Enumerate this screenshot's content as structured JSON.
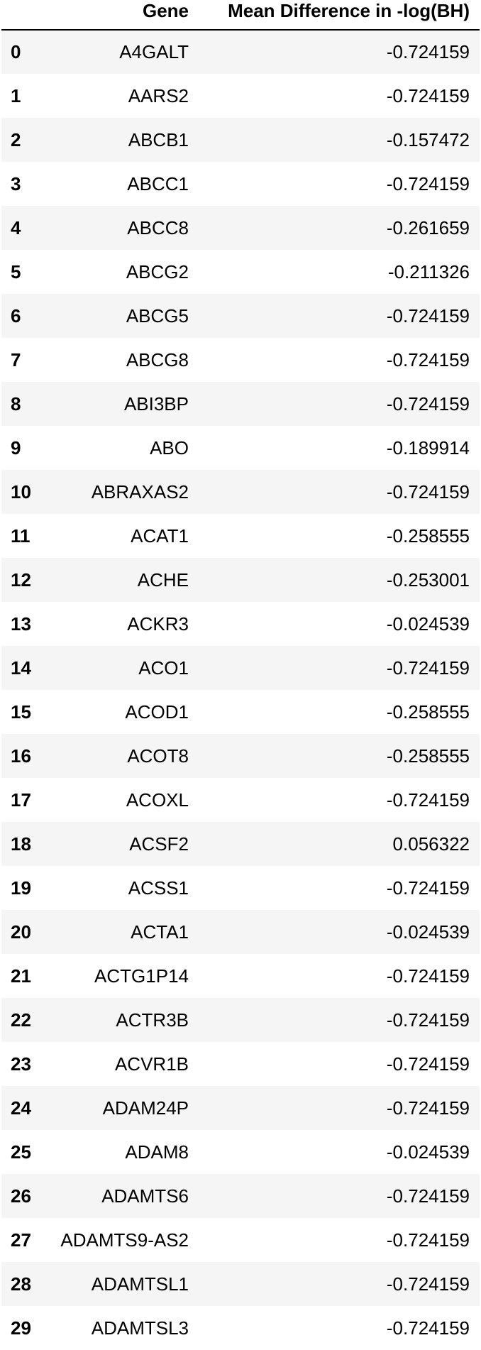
{
  "table": {
    "columns": {
      "index": "",
      "gene": "Gene",
      "value": "Mean Difference in -log(BH)"
    },
    "rows": [
      {
        "index": "0",
        "gene": "A4GALT",
        "value": "-0.724159"
      },
      {
        "index": "1",
        "gene": "AARS2",
        "value": "-0.724159"
      },
      {
        "index": "2",
        "gene": "ABCB1",
        "value": "-0.157472"
      },
      {
        "index": "3",
        "gene": "ABCC1",
        "value": "-0.724159"
      },
      {
        "index": "4",
        "gene": "ABCC8",
        "value": "-0.261659"
      },
      {
        "index": "5",
        "gene": "ABCG2",
        "value": "-0.211326"
      },
      {
        "index": "6",
        "gene": "ABCG5",
        "value": "-0.724159"
      },
      {
        "index": "7",
        "gene": "ABCG8",
        "value": "-0.724159"
      },
      {
        "index": "8",
        "gene": "ABI3BP",
        "value": "-0.724159"
      },
      {
        "index": "9",
        "gene": "ABO",
        "value": "-0.189914"
      },
      {
        "index": "10",
        "gene": "ABRAXAS2",
        "value": "-0.724159"
      },
      {
        "index": "11",
        "gene": "ACAT1",
        "value": "-0.258555"
      },
      {
        "index": "12",
        "gene": "ACHE",
        "value": "-0.253001"
      },
      {
        "index": "13",
        "gene": "ACKR3",
        "value": "-0.024539"
      },
      {
        "index": "14",
        "gene": "ACO1",
        "value": "-0.724159"
      },
      {
        "index": "15",
        "gene": "ACOD1",
        "value": "-0.258555"
      },
      {
        "index": "16",
        "gene": "ACOT8",
        "value": "-0.258555"
      },
      {
        "index": "17",
        "gene": "ACOXL",
        "value": "-0.724159"
      },
      {
        "index": "18",
        "gene": "ACSF2",
        "value": "0.056322"
      },
      {
        "index": "19",
        "gene": "ACSS1",
        "value": "-0.724159"
      },
      {
        "index": "20",
        "gene": "ACTA1",
        "value": "-0.024539"
      },
      {
        "index": "21",
        "gene": "ACTG1P14",
        "value": "-0.724159"
      },
      {
        "index": "22",
        "gene": "ACTR3B",
        "value": "-0.724159"
      },
      {
        "index": "23",
        "gene": "ACVR1B",
        "value": "-0.724159"
      },
      {
        "index": "24",
        "gene": "ADAM24P",
        "value": "-0.724159"
      },
      {
        "index": "25",
        "gene": "ADAM8",
        "value": "-0.024539"
      },
      {
        "index": "26",
        "gene": "ADAMTS6",
        "value": "-0.724159"
      },
      {
        "index": "27",
        "gene": "ADAMTS9-AS2",
        "value": "-0.724159"
      },
      {
        "index": "28",
        "gene": "ADAMTSL1",
        "value": "-0.724159"
      },
      {
        "index": "29",
        "gene": "ADAMTSL3",
        "value": "-0.724159"
      }
    ]
  }
}
